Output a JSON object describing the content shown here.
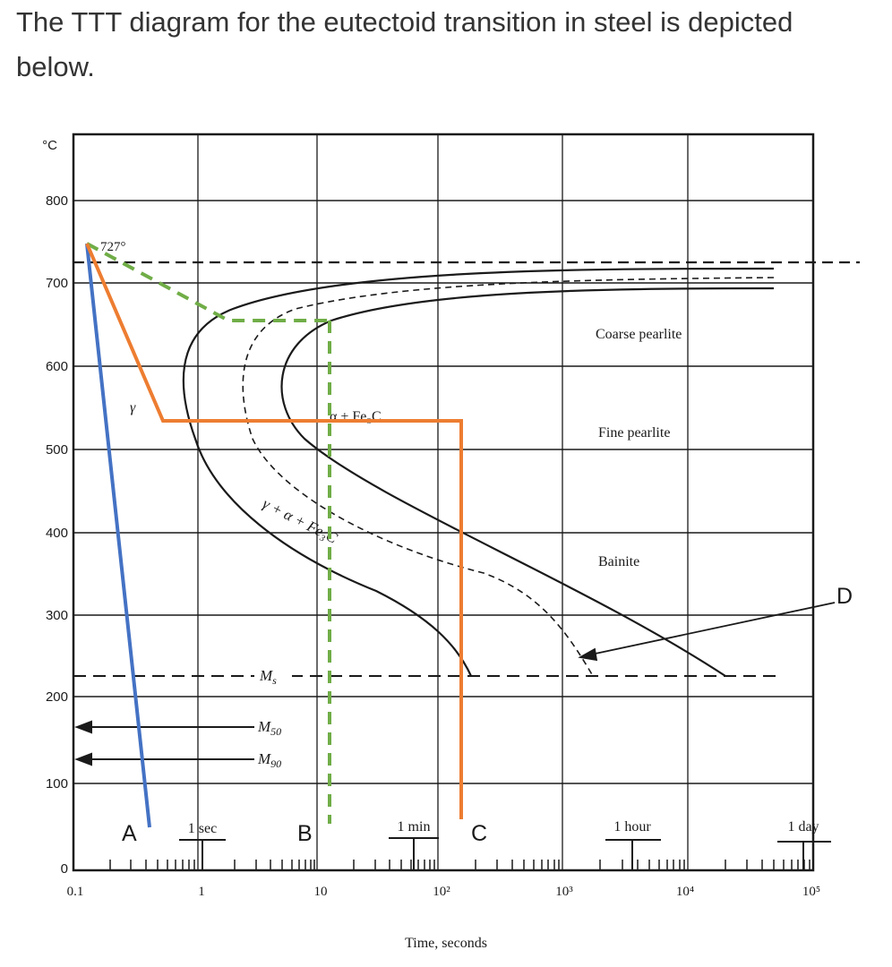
{
  "question": {
    "line1": "The TTT diagram for the eutectoid transition in steel is depicted",
    "line2": "below."
  },
  "diagram": {
    "y_unit": "°C",
    "y_ticks": [
      "800",
      "700",
      "600",
      "500",
      "400",
      "300",
      "200",
      "100",
      "0"
    ],
    "x_ticks": [
      "0.1",
      "1",
      "10",
      "10²",
      "10³",
      "10⁴",
      "10⁵"
    ],
    "x_axis_title": "Time, seconds",
    "time_markers": [
      "1 sec",
      "1 min",
      "1 hour",
      "1 day"
    ],
    "eutectoid_temp_label": "727°",
    "phase_labels": {
      "gamma": "γ",
      "alpha_fe3c": "α + Fe₃C",
      "gamma_alpha_fe3c": "γ + α + Fe₃C",
      "coarse_pearlite": "Coarse pearlite",
      "fine_pearlite": "Fine pearlite",
      "bainite": "Bainite"
    },
    "martensite_labels": {
      "ms": "M",
      "ms_sub": "s",
      "m50": "M",
      "m50_sub": "50",
      "m90": "M",
      "m90_sub": "90"
    },
    "path_labels": [
      "A",
      "B",
      "C",
      "D"
    ],
    "colors": {
      "path_a": "#4472c4",
      "path_c": "#ed7d31",
      "path_b": "#70ad47",
      "ink": "#1a1a1a"
    }
  }
}
